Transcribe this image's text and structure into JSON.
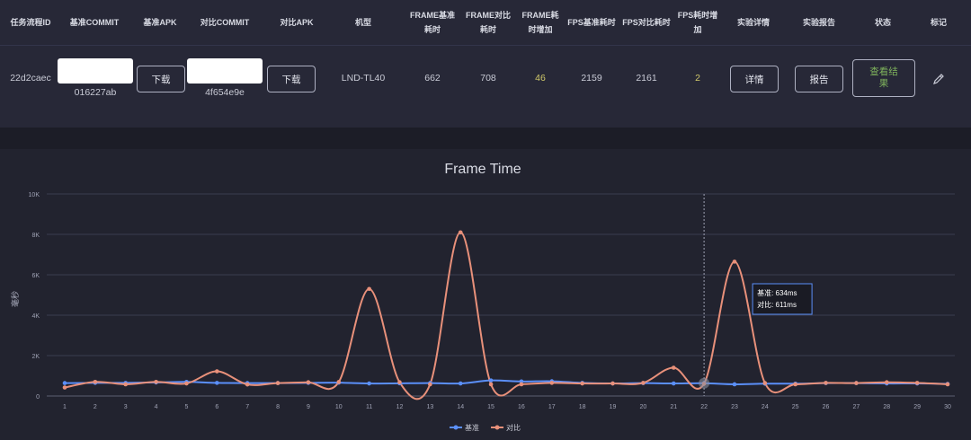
{
  "table": {
    "headers": {
      "task_id": "任务流程ID",
      "base_commit": "基准COMMIT",
      "base_apk": "基准APK",
      "cmp_commit": "对比COMMIT",
      "cmp_apk": "对比APK",
      "model": "机型",
      "frame_base_1": "FRAME基准",
      "frame_base_2": "耗时",
      "frame_cmp_1": "FRAME对比",
      "frame_cmp_2": "耗时",
      "frame_inc_1": "FRAME耗",
      "frame_inc_2": "时增加",
      "fps_base": "FPS基准耗时",
      "fps_cmp": "FPS对比耗时",
      "fps_inc_1": "FPS耗时增",
      "fps_inc_2": "加",
      "detail": "实验详情",
      "report": "实验报告",
      "status": "状态",
      "mark": "标记"
    },
    "row": {
      "task_id": "22d2caec",
      "base_commit": "016227ab",
      "base_apk_button": "下载",
      "cmp_commit": "4f654e9e",
      "cmp_apk_button": "下载",
      "model": "LND-TL40",
      "frame_base": "662",
      "frame_cmp": "708",
      "frame_inc": "46",
      "fps_base": "2159",
      "fps_cmp": "2161",
      "fps_inc": "2",
      "detail_button": "详情",
      "report_button": "报告",
      "status_button_1": "查看结",
      "status_button_2": "果",
      "edit_icon": "pencil-icon"
    }
  },
  "chart_data": {
    "type": "line",
    "title": "Frame Time",
    "ylabel": "毫秒",
    "xlabel": "",
    "ylim": [
      0,
      10000
    ],
    "yticks": [
      "0",
      "2K",
      "4K",
      "6K",
      "8K",
      "10K"
    ],
    "yticks_values": [
      0,
      2000,
      4000,
      6000,
      8000,
      10000
    ],
    "x": [
      "1",
      "2",
      "3",
      "4",
      "5",
      "6",
      "7",
      "8",
      "9",
      "10",
      "11",
      "12",
      "13",
      "14",
      "15",
      "16",
      "17",
      "18",
      "19",
      "20",
      "21",
      "22",
      "23",
      "24",
      "25",
      "26",
      "27",
      "28",
      "29",
      "30"
    ],
    "series": [
      {
        "name": "基准",
        "color": "#5b8ff9",
        "values": [
          640,
          650,
          650,
          670,
          700,
          650,
          640,
          640,
          650,
          660,
          620,
          630,
          640,
          620,
          770,
          720,
          730,
          650,
          620,
          640,
          620,
          634,
          580,
          610,
          610,
          640,
          640,
          620,
          620,
          600
        ]
      },
      {
        "name": "对比",
        "color": "#e8907a",
        "values": [
          420,
          700,
          580,
          700,
          620,
          1220,
          570,
          640,
          680,
          690,
          5300,
          680,
          580,
          8100,
          580,
          580,
          650,
          620,
          620,
          650,
          1400,
          611,
          6650,
          640,
          580,
          650,
          640,
          680,
          650,
          580
        ]
      }
    ],
    "tooltip": {
      "index": 21,
      "line1": "基准: 634ms",
      "line2": "对比: 611ms"
    },
    "legend_position": "bottom",
    "grid": true
  }
}
